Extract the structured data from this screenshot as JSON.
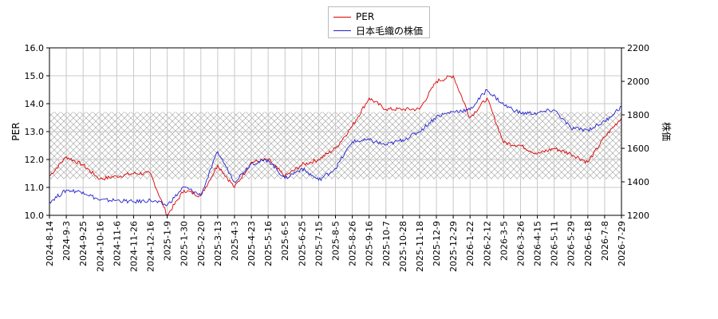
{
  "colors": {
    "per": "#dd0000",
    "price": "#2222cc",
    "grid": "#c8c8c8",
    "band": "#999999"
  },
  "legend": [
    {
      "label": "PER",
      "color": "#dd0000"
    },
    {
      "label": "日本毛織の株価",
      "color": "#2222cc"
    }
  ],
  "chart_data": {
    "type": "line",
    "title": "",
    "xlabel": "",
    "ylabel_left": "PER",
    "ylabel_right": "株価",
    "ylim_left": [
      10.0,
      16.0
    ],
    "ylim_right": [
      1200,
      2200
    ],
    "yticks_left": [
      "10.0",
      "11.0",
      "12.0",
      "13.0",
      "14.0",
      "15.0",
      "16.0"
    ],
    "yticks_right": [
      "1200",
      "1400",
      "1600",
      "1800",
      "2000",
      "2200"
    ],
    "x_tick_labels": [
      "2024-8-14",
      "2024-9-3",
      "2024-9-25",
      "2024-10-16",
      "2024-11-6",
      "2024-11-26",
      "2024-12-16",
      "2025-1-9",
      "2025-1-30",
      "2025-2-20",
      "2025-3-13",
      "2025-4-3",
      "2025-4-23",
      "2025-5-16",
      "2025-6-5",
      "2025-6-25",
      "2025-7-15",
      "2025-8-5",
      "2025-8-26",
      "2025-9-16",
      "2025-10-7",
      "2025-10-28",
      "2025-11-18",
      "2025-12-9",
      "2025-12-29",
      "2026-1-22",
      "2026-2-12",
      "2026-3-5",
      "2026-3-26",
      "2026-4-15",
      "2026-5-11",
      "2026-5-29",
      "2026-6-18",
      "2026-7-8",
      "2026-7-29"
    ],
    "band_left": [
      11.3,
      13.7
    ],
    "grid": true,
    "legend_position": "top-center",
    "series": [
      {
        "name": "PER",
        "axis": "left",
        "color": "#dd0000",
        "x": [
          "2024-8-14",
          "2024-9-3",
          "2024-9-25",
          "2024-10-16",
          "2024-11-6",
          "2024-11-26",
          "2024-12-16",
          "2025-1-9",
          "2025-1-30",
          "2025-2-20",
          "2025-3-13",
          "2025-4-3",
          "2025-4-23",
          "2025-5-16",
          "2025-6-5",
          "2025-6-25",
          "2025-7-15",
          "2025-8-5",
          "2025-8-26",
          "2025-9-16",
          "2025-10-7",
          "2025-10-28",
          "2025-11-18",
          "2025-12-9",
          "2025-12-29",
          "2026-1-22",
          "2026-2-12",
          "2026-3-5",
          "2026-3-26",
          "2026-4-15",
          "2026-5-11",
          "2026-5-29",
          "2026-6-18",
          "2026-7-8",
          "2026-7-29"
        ],
        "values": [
          11.4,
          12.1,
          11.8,
          11.3,
          11.4,
          11.5,
          11.5,
          10.0,
          10.9,
          10.7,
          11.8,
          11.0,
          11.9,
          12.0,
          11.4,
          11.8,
          12.0,
          12.4,
          13.2,
          14.2,
          13.8,
          13.8,
          13.8,
          14.8,
          15.0,
          13.5,
          14.2,
          12.6,
          12.5,
          12.2,
          12.4,
          12.2,
          11.9,
          12.8,
          13.5
        ]
      },
      {
        "name": "日本毛織の株価",
        "axis": "right",
        "color": "#2222cc",
        "x": [
          "2024-8-14",
          "2024-9-3",
          "2024-9-25",
          "2024-10-16",
          "2024-11-6",
          "2024-11-26",
          "2024-12-16",
          "2025-1-9",
          "2025-1-30",
          "2025-2-20",
          "2025-3-13",
          "2025-4-3",
          "2025-4-23",
          "2025-5-16",
          "2025-6-5",
          "2025-6-25",
          "2025-7-15",
          "2025-8-5",
          "2025-8-26",
          "2025-9-16",
          "2025-10-7",
          "2025-10-28",
          "2025-11-18",
          "2025-12-9",
          "2025-12-29",
          "2026-1-22",
          "2026-2-12",
          "2026-3-5",
          "2026-3-26",
          "2026-4-15",
          "2026-5-11",
          "2026-5-29",
          "2026-6-18",
          "2026-7-8",
          "2026-7-29"
        ],
        "values": [
          1280,
          1350,
          1340,
          1290,
          1290,
          1280,
          1290,
          1260,
          1370,
          1320,
          1580,
          1400,
          1510,
          1530,
          1420,
          1480,
          1410,
          1480,
          1640,
          1650,
          1620,
          1650,
          1700,
          1790,
          1820,
          1830,
          1950,
          1860,
          1810,
          1810,
          1830,
          1720,
          1710,
          1760,
          1850
        ]
      }
    ]
  }
}
